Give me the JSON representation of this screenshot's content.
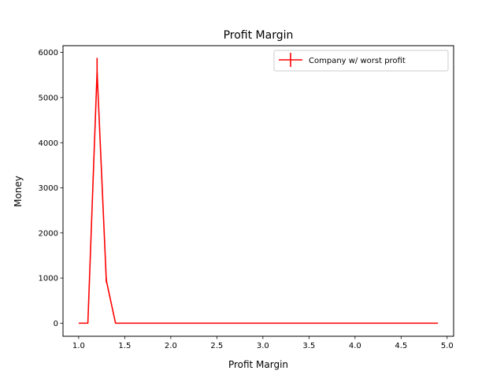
{
  "chart_data": {
    "type": "line",
    "title": "Profit Margin",
    "xlabel": "Profit Margin",
    "ylabel": "Money",
    "xlim": [
      0.83,
      5.07
    ],
    "ylim": [
      -290,
      6150
    ],
    "xticks": [
      1.0,
      1.5,
      2.0,
      2.5,
      3.0,
      3.5,
      4.0,
      4.5,
      5.0
    ],
    "xtick_labels": [
      "1.0",
      "1.5",
      "2.0",
      "2.5",
      "3.0",
      "3.5",
      "4.0",
      "4.5",
      "5.0"
    ],
    "yticks": [
      0,
      1000,
      2000,
      3000,
      4000,
      5000,
      6000
    ],
    "ytick_labels": [
      "0",
      "1000",
      "2000",
      "3000",
      "4000",
      "5000",
      "6000"
    ],
    "grid": false,
    "legend_position": "top-right",
    "series": [
      {
        "name": "Company w/ worst profit",
        "color": "#ff0000",
        "x": [
          1.0,
          1.1,
          1.2,
          1.3,
          1.4,
          1.5,
          1.6,
          1.7,
          1.8,
          1.9,
          2.0,
          2.1,
          2.2,
          2.3,
          2.4,
          2.5,
          2.6,
          2.7,
          2.8,
          2.9,
          3.0,
          3.1,
          3.2,
          3.3,
          3.4,
          3.5,
          3.6,
          3.7,
          3.8,
          3.9,
          4.0,
          4.1,
          4.2,
          4.3,
          4.4,
          4.5,
          4.6,
          4.7,
          4.8,
          4.9
        ],
        "y": [
          0,
          0,
          5580,
          950,
          0,
          0,
          0,
          0,
          0,
          0,
          0,
          0,
          0,
          0,
          0,
          0,
          0,
          0,
          0,
          0,
          0,
          0,
          0,
          0,
          0,
          0,
          0,
          0,
          0,
          0,
          0,
          0,
          0,
          0,
          0,
          0,
          0,
          0,
          0,
          0
        ],
        "yerr": [
          0,
          0,
          300,
          50,
          0,
          0,
          0,
          0,
          0,
          0,
          0,
          0,
          0,
          0,
          0,
          0,
          0,
          0,
          0,
          0,
          0,
          0,
          0,
          0,
          0,
          0,
          0,
          0,
          0,
          0,
          0,
          0,
          0,
          0,
          0,
          0,
          0,
          0,
          0,
          0
        ]
      }
    ]
  }
}
